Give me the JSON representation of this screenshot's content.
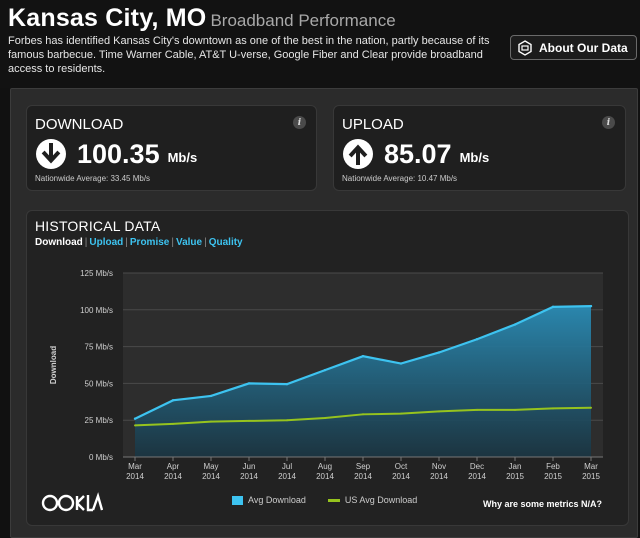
{
  "header": {
    "city": "Kansas City, MO",
    "subtitle": "Broadband Performance",
    "description": "Forbes has identified Kansas City's downtown as one of the best in the nation, partly because of its famous barbecue. Time Warner Cable, AT&T U-verse, Google Fiber and Clear provide broadband access to residents.",
    "about_button": "About Our Data"
  },
  "download": {
    "label": "DOWNLOAD",
    "value": "100.35",
    "unit": "Mb/s",
    "nationwide": "Nationwide Average: 33.45 Mb/s",
    "info": "i"
  },
  "upload": {
    "label": "UPLOAD",
    "value": "85.07",
    "unit": "Mb/s",
    "nationwide": "Nationwide Average: 10.47 Mb/s",
    "info": "i"
  },
  "historical": {
    "title": "HISTORICAL DATA",
    "tabs": [
      "Download",
      "Upload",
      "Promise",
      "Value",
      "Quality"
    ],
    "na_link": "Why are some metrics N/A?"
  },
  "colors": {
    "accent": "#3dc3f0",
    "us_line": "#96c31e"
  },
  "chart_data": {
    "type": "area",
    "ylabel": "Download",
    "xlabel": "",
    "ylim": [
      0,
      125
    ],
    "yticks": [
      "0 Mb/s",
      "25 Mb/s",
      "50 Mb/s",
      "75 Mb/s",
      "100 Mb/s",
      "125 Mb/s"
    ],
    "ytick_values": [
      0,
      25,
      50,
      75,
      100,
      125
    ],
    "categories": [
      [
        "Mar",
        "2014"
      ],
      [
        "Apr",
        "2014"
      ],
      [
        "May",
        "2014"
      ],
      [
        "Jun",
        "2014"
      ],
      [
        "Jul",
        "2014"
      ],
      [
        "Aug",
        "2014"
      ],
      [
        "Sep",
        "2014"
      ],
      [
        "Oct",
        "2014"
      ],
      [
        "Nov",
        "2014"
      ],
      [
        "Dec",
        "2014"
      ],
      [
        "Jan",
        "2015"
      ],
      [
        "Feb",
        "2015"
      ],
      [
        "Mar",
        "2015"
      ]
    ],
    "series": [
      {
        "name": "Avg Download",
        "style": "area",
        "color": "#3dc3f0",
        "values": [
          26,
          38.5,
          41.5,
          50,
          49.5,
          59,
          68.5,
          63.5,
          71,
          80,
          90,
          102,
          102.5
        ]
      },
      {
        "name": "US Avg Download",
        "style": "line",
        "color": "#96c31e",
        "values": [
          21.5,
          22.5,
          24,
          24.5,
          25,
          26.5,
          29,
          29.5,
          31,
          32,
          32,
          33,
          33.5
        ]
      }
    ],
    "legend": "bottom-center",
    "grid": true
  }
}
